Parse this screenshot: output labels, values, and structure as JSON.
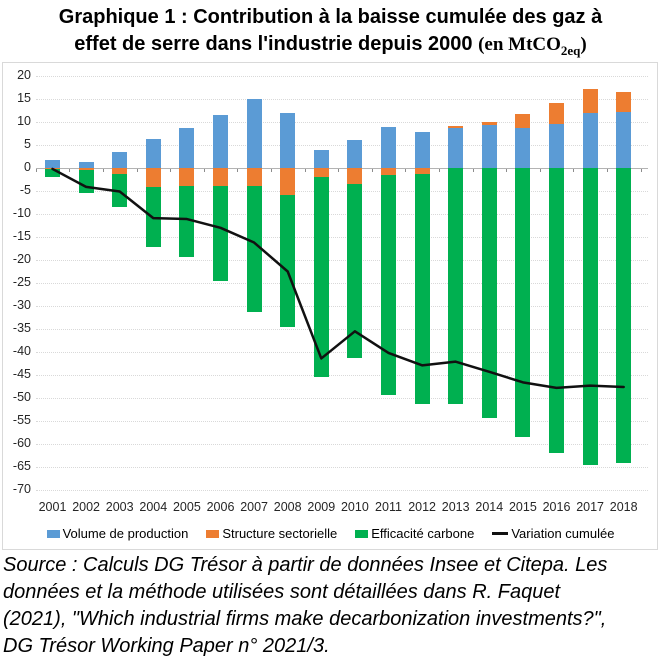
{
  "title": {
    "line1": "Graphique 1 : Contribution à la baisse cumulée des gaz à",
    "line2_pre": "effet de serre dans l'industrie depuis 2000 ",
    "unit_prefix": "(en MtCO",
    "unit_sub": "2eq",
    "unit_post": ")"
  },
  "chart_data": {
    "type": "bar",
    "subtype": "stacked-bars-with-line",
    "categories": [
      "2001",
      "2002",
      "2003",
      "2004",
      "2005",
      "2006",
      "2007",
      "2008",
      "2009",
      "2010",
      "2011",
      "2012",
      "2013",
      "2014",
      "2015",
      "2016",
      "2017",
      "2018"
    ],
    "series": [
      {
        "name": "Volume de production",
        "type": "bar",
        "color": "#5B9BD5",
        "values": [
          1.8,
          1.3,
          3.4,
          6.3,
          8.7,
          11.6,
          14.9,
          12.0,
          4.0,
          6.0,
          9.0,
          7.9,
          8.8,
          9.3,
          8.8,
          9.5,
          11.9,
          12.2
        ]
      },
      {
        "name": "Structure sectorielle",
        "type": "bar",
        "color": "#ED7D31",
        "values": [
          -0.2,
          -0.5,
          -1.2,
          -4.1,
          -4.0,
          -4.0,
          -4.0,
          -5.9,
          -1.9,
          -3.5,
          -1.5,
          -1.4,
          0.4,
          0.8,
          2.9,
          4.7,
          5.3,
          4.3
        ]
      },
      {
        "name": "Efficacité carbone",
        "type": "bar",
        "color": "#00B050",
        "values": [
          -1.8,
          -4.9,
          -7.2,
          -13.1,
          -15.4,
          -20.5,
          -27.2,
          -28.7,
          -43.5,
          -37.8,
          -47.8,
          -49.8,
          -51.3,
          -54.4,
          -58.4,
          -62.0,
          -64.6,
          -64.2
        ]
      },
      {
        "name": "Variation cumulée",
        "type": "line",
        "color": "#111111",
        "values": [
          -0.2,
          -4.1,
          -5.1,
          -10.9,
          -11.1,
          -13.0,
          -16.2,
          -22.5,
          -41.4,
          -35.5,
          -40.2,
          -42.9,
          -42.1,
          -44.3,
          -46.6,
          -47.8,
          -47.3,
          -47.6
        ]
      }
    ],
    "title": "Graphique 1 : Contribution à la baisse cumulée des gaz à effet de serre dans l'industrie depuis 2000 (en MtCO2eq)",
    "xlabel": "",
    "ylabel": "",
    "ylim": [
      -70,
      20
    ],
    "y_tick_step": 5,
    "grid": "horizontal-dotted",
    "legend_position": "bottom"
  },
  "source_lines": [
    "Source : Calculs DG Trésor à partir de données Insee et Citepa. Les",
    "données et la méthode utilisées sont détaillées dans R. Faquet",
    "(2021), \"Which industrial firms make decarbonization investments?\",",
    "DG Trésor Working Paper n° 2021/3."
  ]
}
